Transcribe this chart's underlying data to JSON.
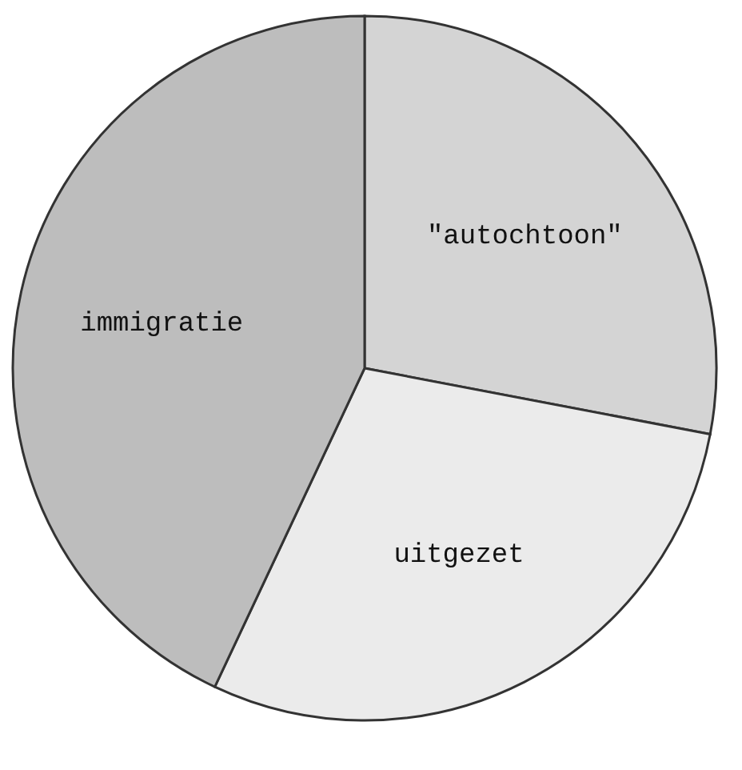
{
  "chart_data": {
    "type": "pie",
    "categories": [
      "\"autochtoon\"",
      "uitgezet",
      "immigratie"
    ],
    "values": [
      28,
      29,
      43
    ],
    "colors": [
      "#d4d4d4",
      "#ebebeb",
      "#bdbdbd"
    ],
    "legend": false
  }
}
